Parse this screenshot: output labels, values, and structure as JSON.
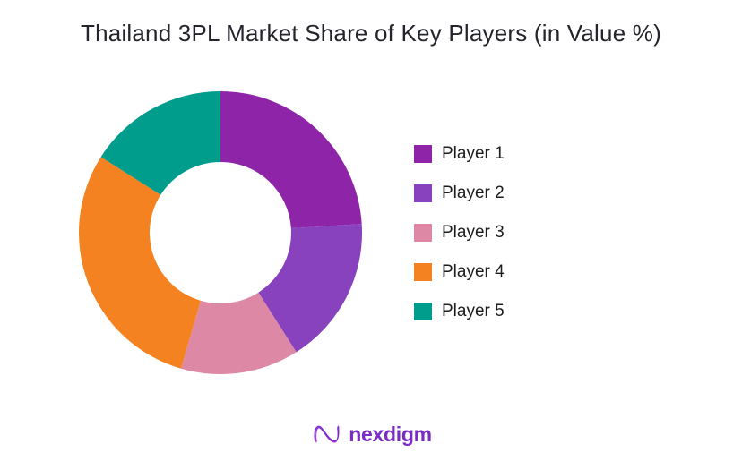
{
  "chart_data": {
    "type": "pie",
    "subtype": "donut",
    "title": "Thailand 3PL Market Share of Key Players (in Value %)",
    "categories": [
      "Player 1",
      "Player 2",
      "Player 3",
      "Player 4",
      "Player 5"
    ],
    "values": [
      24,
      17,
      13.5,
      29.5,
      16
    ],
    "unit": "%",
    "colors": [
      "#8E24A8",
      "#8842BE",
      "#DD88A4",
      "#F58220",
      "#009C8C"
    ],
    "start_angle_deg": 0,
    "direction": "clockwise",
    "donut_hole_ratio": 0.5,
    "legend_position": "right",
    "data_labels": false,
    "title_color": "#23242C",
    "legend_text_color": "#1D1D1D"
  },
  "branding": {
    "logo_text": "nexdigm",
    "logo_color": "#7B2CC4",
    "logo_icon": "nexdigm-n-wave-icon"
  }
}
